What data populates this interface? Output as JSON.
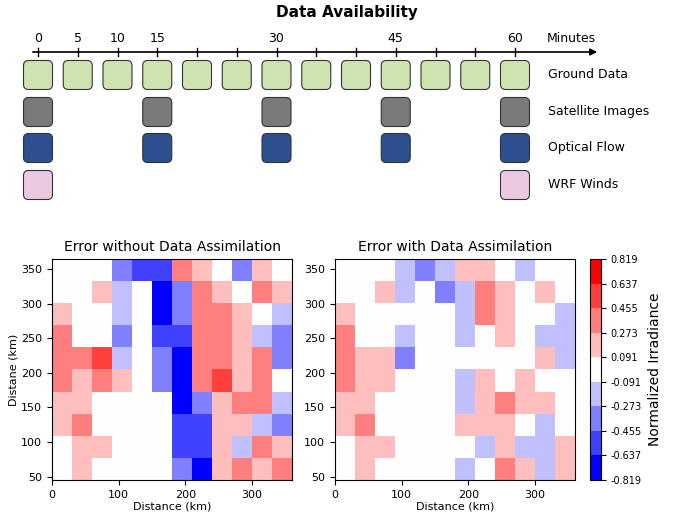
{
  "timeline": {
    "title": "Data Availability",
    "axis_label": "Minutes",
    "xticks": [
      0,
      5,
      10,
      15,
      30,
      45,
      60
    ],
    "rows": [
      {
        "name": "Ground Data",
        "color": "#cfe3b0",
        "times": [
          0,
          5,
          10,
          15,
          20,
          25,
          30,
          35,
          40,
          45,
          50,
          55,
          60
        ]
      },
      {
        "name": "Satellite Images",
        "color": "#7a7a7a",
        "times": [
          0,
          15,
          30,
          45,
          60
        ]
      },
      {
        "name": "Optical Flow",
        "color": "#2c4f8f",
        "times": [
          0,
          15,
          30,
          45,
          60
        ]
      },
      {
        "name": "WRF Winds",
        "color": "#ecc9e2",
        "times": [
          0,
          60
        ]
      }
    ]
  },
  "chart_data": [
    {
      "type": "heatmap",
      "title": "Error without Data Assimilation",
      "x_label": "Distance (km)",
      "y_label": "Distane (km)",
      "xlim": [
        0,
        360
      ],
      "ylim": [
        45,
        365
      ],
      "xticks": [
        0,
        100,
        200,
        300
      ],
      "yticks": [
        50,
        100,
        150,
        200,
        250,
        300,
        350
      ],
      "cells": [
        [
          0,
          0,
          0,
          -0.3,
          -0.6,
          -0.5,
          0.3,
          0.2,
          0,
          -0.3,
          0.2,
          0
        ],
        [
          0,
          0,
          0.1,
          -0.2,
          0,
          -0.7,
          -0.3,
          0.3,
          0.1,
          0,
          0.3,
          0.1
        ],
        [
          0.2,
          0,
          0,
          -0.2,
          0,
          -0.7,
          -0.4,
          0.4,
          0.3,
          0.2,
          0,
          -0.2
        ],
        [
          0.3,
          0,
          0,
          -0.3,
          0,
          -0.6,
          -0.6,
          0.4,
          0.3,
          0.1,
          -0.2,
          -0.3
        ],
        [
          0.4,
          0.3,
          0.5,
          -0.2,
          0,
          -0.3,
          -0.7,
          0.3,
          0.4,
          0.2,
          0.3,
          -0.4
        ],
        [
          0.3,
          0.2,
          0.3,
          0.1,
          0,
          -0.4,
          -0.8,
          0.3,
          0.5,
          0.2,
          0.3,
          0
        ],
        [
          0.2,
          0.2,
          0,
          0,
          0,
          0,
          -0.7,
          -0.3,
          0.2,
          0.3,
          0.3,
          -0.1
        ],
        [
          0.1,
          0.3,
          0,
          0,
          0,
          0,
          -0.6,
          -0.6,
          0.1,
          0.2,
          -0.2,
          -0.3
        ],
        [
          0,
          0.2,
          0.1,
          0,
          0,
          0,
          -0.5,
          -0.6,
          0.2,
          -0.1,
          0.3,
          0.2
        ],
        [
          0,
          0.2,
          0,
          0,
          0,
          0,
          -0.3,
          -0.7,
          0.1,
          0.3,
          0.2,
          0.3
        ]
      ]
    },
    {
      "type": "heatmap",
      "title": "Error with Data Assimilation",
      "x_label": "Distance (km)",
      "xlim": [
        0,
        360
      ],
      "ylim": [
        45,
        365
      ],
      "xticks": [
        0,
        100,
        200,
        300
      ],
      "yticks": [
        50,
        100,
        150,
        200,
        250,
        300,
        350
      ],
      "cells": [
        [
          0,
          0,
          0,
          -0.2,
          -0.3,
          -0.2,
          0.2,
          0.2,
          0,
          -0.2,
          0,
          0
        ],
        [
          0,
          0,
          0.1,
          -0.1,
          0,
          -0.3,
          -0.2,
          0.3,
          0.1,
          0,
          0.2,
          0
        ],
        [
          0.2,
          0,
          0,
          0,
          0,
          0,
          -0.2,
          0.3,
          0.2,
          0,
          0,
          -0.1
        ],
        [
          0.3,
          0,
          0,
          -0.2,
          0,
          0,
          -0.2,
          0,
          0.1,
          0,
          -0.2,
          -0.2
        ],
        [
          0.4,
          0.2,
          0.2,
          -0.3,
          0,
          0,
          0,
          0,
          0,
          0,
          0.1,
          -0.1
        ],
        [
          0.3,
          0.2,
          0.2,
          0,
          0,
          0,
          -0.2,
          0.2,
          0,
          0.2,
          0,
          0
        ],
        [
          0.2,
          0.2,
          0,
          0,
          0,
          0,
          -0.2,
          0.2,
          0.3,
          0.2,
          0.2,
          0
        ],
        [
          0.1,
          0.3,
          0,
          0,
          0,
          0,
          0.1,
          0.2,
          0.2,
          0,
          -0.2,
          0
        ],
        [
          0,
          0.2,
          0.1,
          0,
          0,
          0,
          0,
          -0.2,
          0.2,
          -0.1,
          -0.2,
          0.1
        ],
        [
          0,
          0.2,
          0,
          0,
          0,
          0,
          -0.2,
          0,
          0.3,
          0.2,
          -0.1,
          0.2
        ]
      ],
      "colorbar": {
        "label": "Normalized Irradiance",
        "range": [
          -0.819,
          0.819
        ],
        "ticks": [
          -0.819,
          -0.637,
          -0.455,
          -0.273,
          -0.091,
          0.091,
          0.273,
          0.455,
          0.637,
          0.819
        ]
      }
    }
  ]
}
